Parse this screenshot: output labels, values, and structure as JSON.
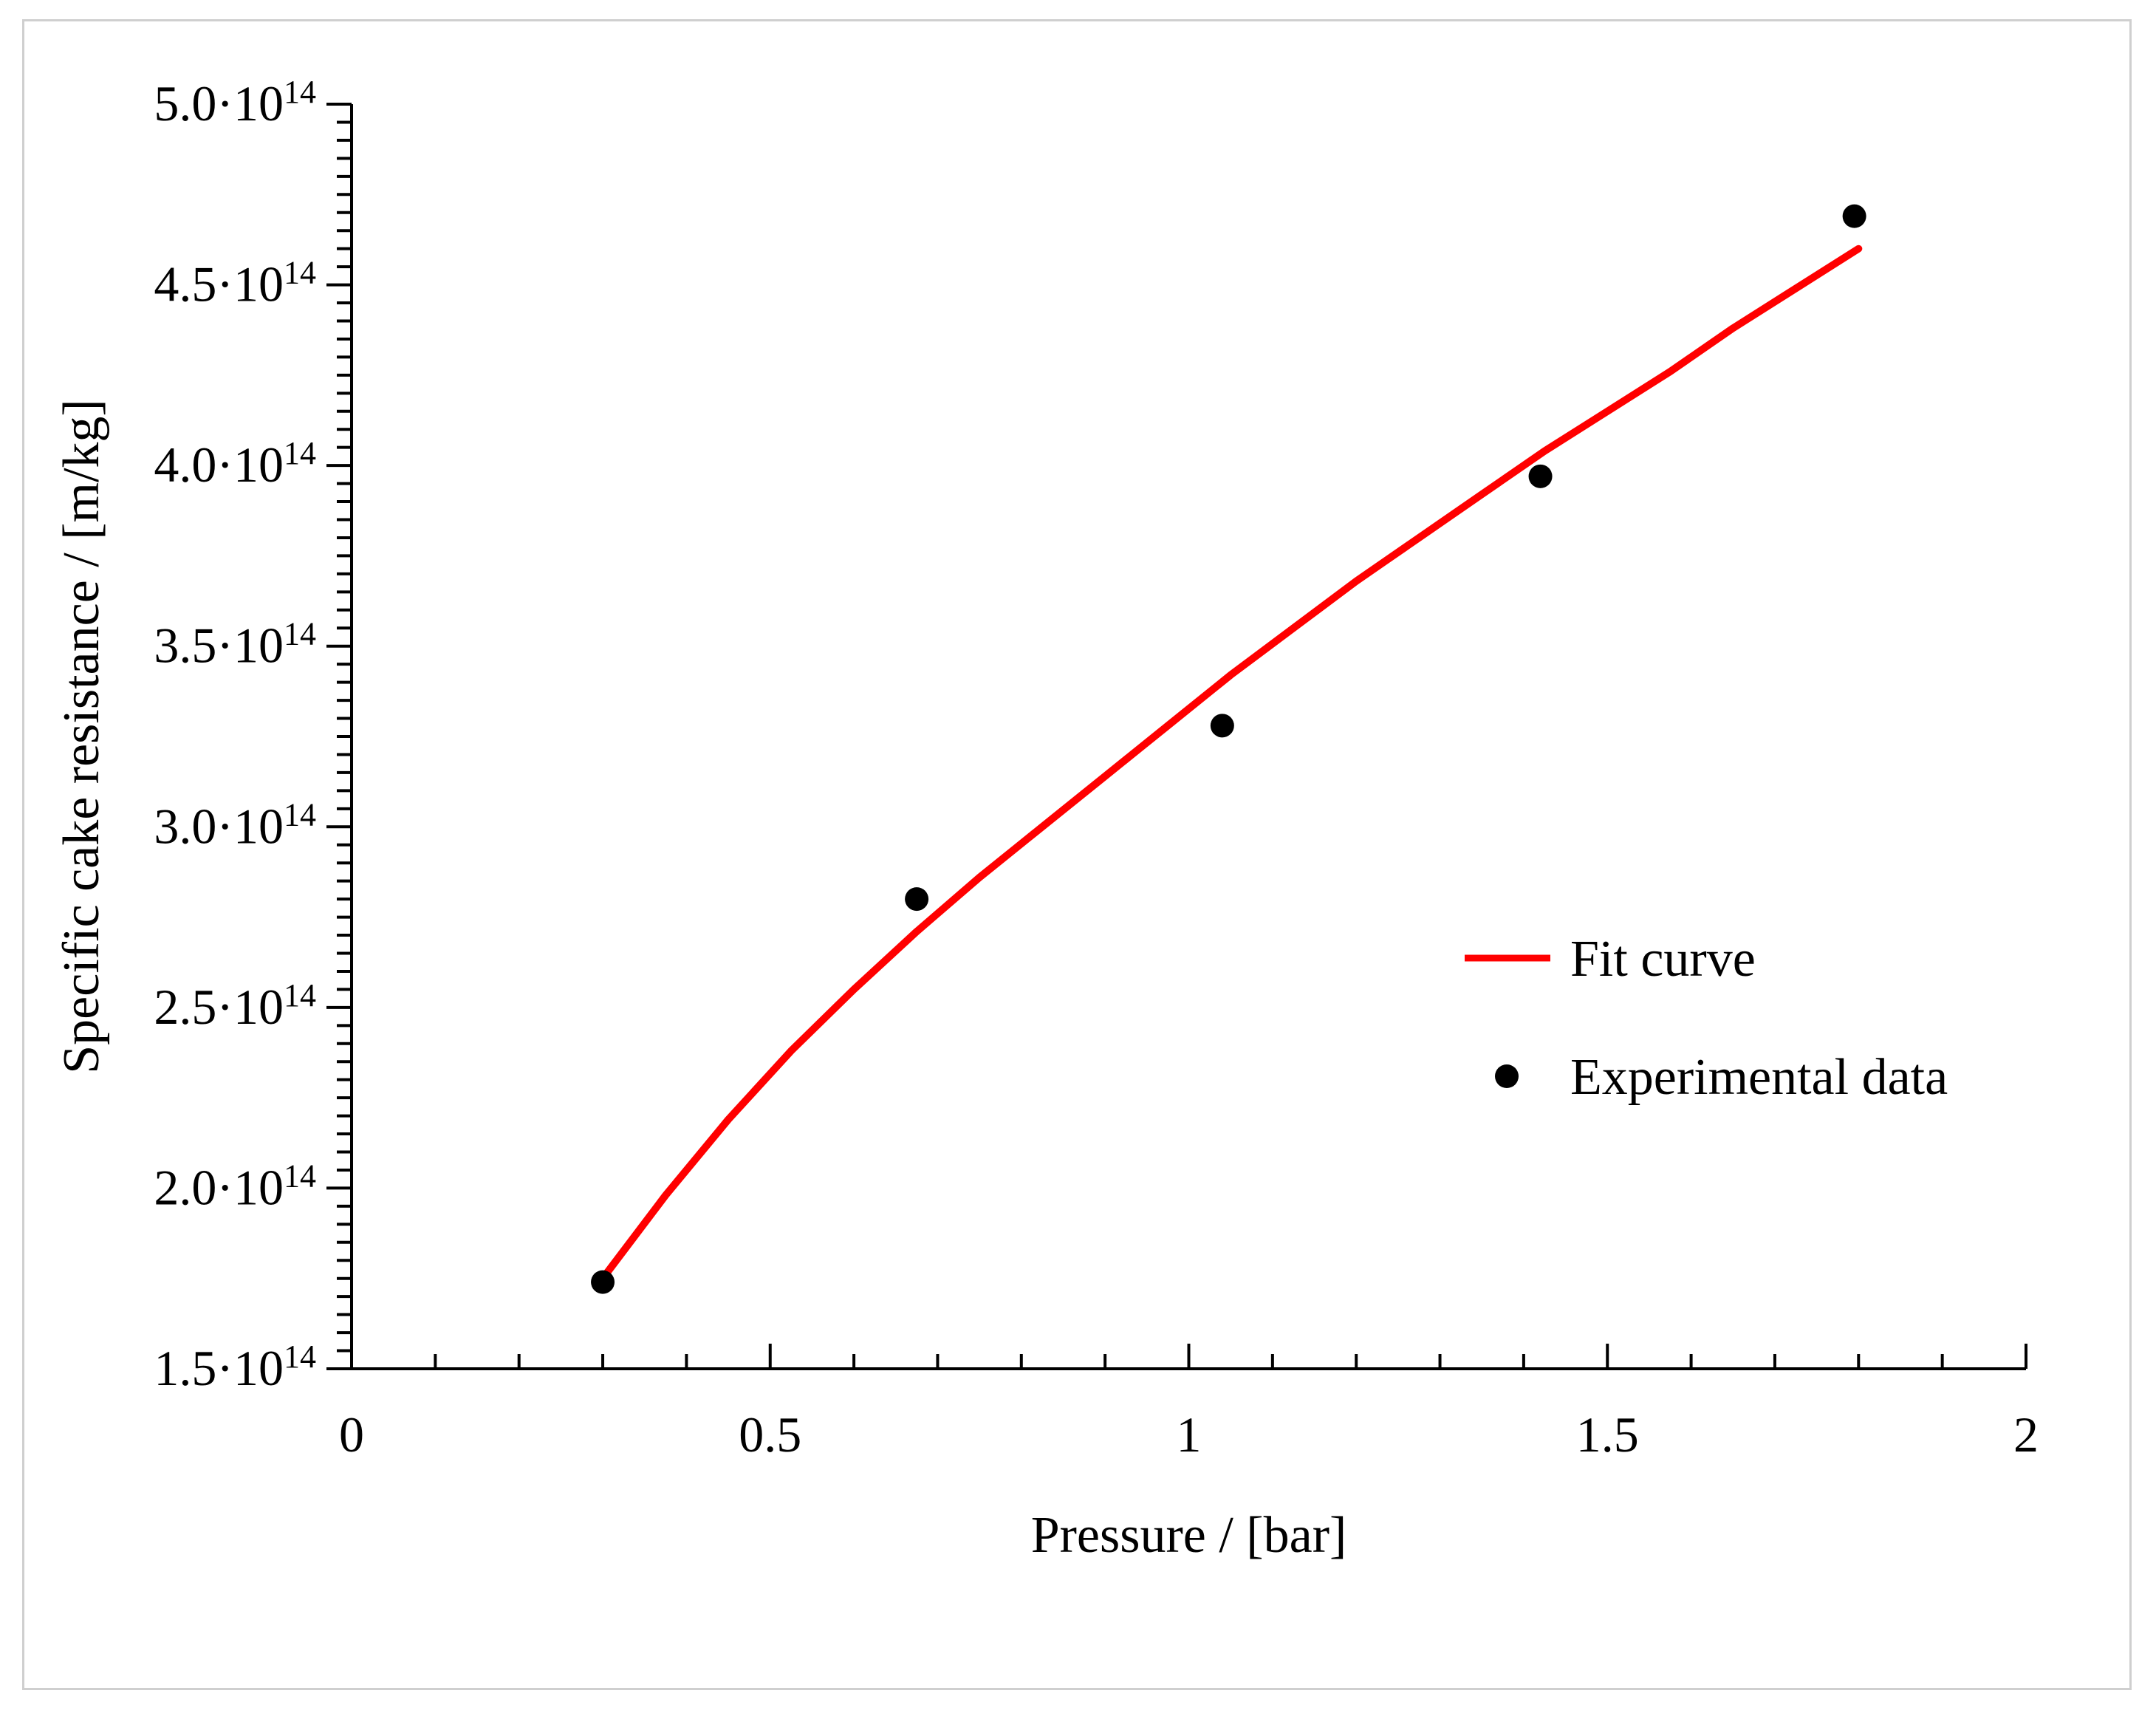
{
  "chart_data": {
    "type": "scatter",
    "title": "",
    "xlabel": "Pressure / [bar]",
    "ylabel": "Specific cake resistance / [m/kg]",
    "xlim": [
      0,
      2
    ],
    "ylim": [
      150000000000000.0,
      500000000000000.0
    ],
    "x_ticks": [
      0,
      0.5,
      1,
      1.5,
      2
    ],
    "x_tick_labels": [
      "0",
      "0.5",
      "1",
      "1.5",
      "2"
    ],
    "x_minor_step": 0.1,
    "y_ticks": [
      150000000000000.0,
      200000000000000.0,
      250000000000000.0,
      300000000000000.0,
      350000000000000.0,
      400000000000000.0,
      450000000000000.0,
      500000000000000.0
    ],
    "y_tick_labels": [
      {
        "mantissa": "1.5·10",
        "exp": "14"
      },
      {
        "mantissa": "2.0·10",
        "exp": "14"
      },
      {
        "mantissa": "2.5·10",
        "exp": "14"
      },
      {
        "mantissa": "3.0·10",
        "exp": "14"
      },
      {
        "mantissa": "3.5·10",
        "exp": "14"
      },
      {
        "mantissa": "4.0·10",
        "exp": "14"
      },
      {
        "mantissa": "4.5·10",
        "exp": "14"
      },
      {
        "mantissa": "5.0·10",
        "exp": "14"
      }
    ],
    "y_minor_step": 5000000000000.0,
    "grid": false,
    "legend": "center-right",
    "series": [
      {
        "name": "Fit curve",
        "kind": "line",
        "color": "#ff0000",
        "x": [
          0.3,
          0.375,
          0.45,
          0.525,
          0.6,
          0.675,
          0.75,
          0.825,
          0.9,
          0.975,
          1.05,
          1.125,
          1.2,
          1.275,
          1.35,
          1.425,
          1.5,
          1.575,
          1.65,
          1.725,
          1.8
        ],
        "y": [
          175000000000000.0,
          198000000000000.0,
          219000000000000.0,
          238000000000000.0,
          255000000000000.0,
          271000000000000.0,
          286000000000000.0,
          300000000000000.0,
          314000000000000.0,
          328000000000000.0,
          342000000000000.0,
          355000000000000.0,
          368000000000000.0,
          380000000000000.0,
          392000000000000.0,
          404000000000000.0,
          415000000000000.0,
          426000000000000.0,
          438000000000000.0,
          449000000000000.0,
          460000000000000.0
        ]
      },
      {
        "name": "Experimental data",
        "kind": "scatter",
        "color": "#000000",
        "x": [
          0.3,
          0.675,
          1.04,
          1.42,
          1.795
        ],
        "y": [
          174000000000000.0,
          280000000000000.0,
          328000000000000.0,
          397000000000000.0,
          469000000000000.0
        ]
      }
    ]
  }
}
